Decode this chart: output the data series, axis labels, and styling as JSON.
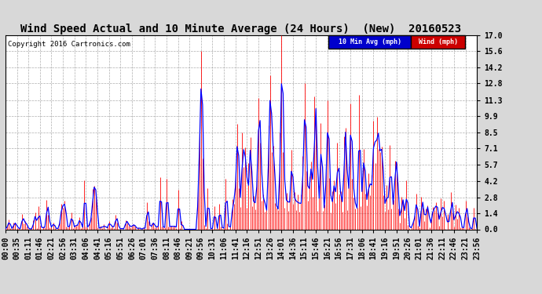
{
  "title": "Wind Speed Actual and 10 Minute Average (24 Hours)  (New)  20160523",
  "copyright": "Copyright 2016 Cartronics.com",
  "yticks": [
    0.0,
    1.4,
    2.8,
    4.2,
    5.7,
    7.1,
    8.5,
    9.9,
    11.3,
    12.8,
    14.2,
    15.6,
    17.0
  ],
  "ylim": [
    0.0,
    17.0
  ],
  "bg_color": "#d8d8d8",
  "plot_bg_color": "#ffffff",
  "grid_color": "#999999",
  "wind_color": "#ff0000",
  "avg_color": "#0000ff",
  "legend_avg_bg": "#0000cc",
  "legend_wind_bg": "#cc0000",
  "legend_avg_text": "10 Min Avg (mph)",
  "legend_wind_text": "Wind (mph)",
  "title_fontsize": 10,
  "copyright_fontsize": 6.5,
  "tick_fontsize": 7,
  "xtick_labels": [
    "00:00",
    "00:35",
    "01:11",
    "01:46",
    "02:21",
    "02:56",
    "03:31",
    "04:06",
    "04:41",
    "05:16",
    "05:51",
    "06:26",
    "07:01",
    "07:36",
    "08:11",
    "08:46",
    "09:21",
    "09:56",
    "10:31",
    "11:06",
    "11:41",
    "12:16",
    "12:51",
    "13:26",
    "14:01",
    "14:36",
    "15:11",
    "15:46",
    "16:21",
    "16:56",
    "17:31",
    "18:06",
    "18:41",
    "19:16",
    "19:51",
    "20:26",
    "21:01",
    "21:36",
    "22:11",
    "22:46",
    "23:21",
    "23:56"
  ],
  "n_points": 288
}
